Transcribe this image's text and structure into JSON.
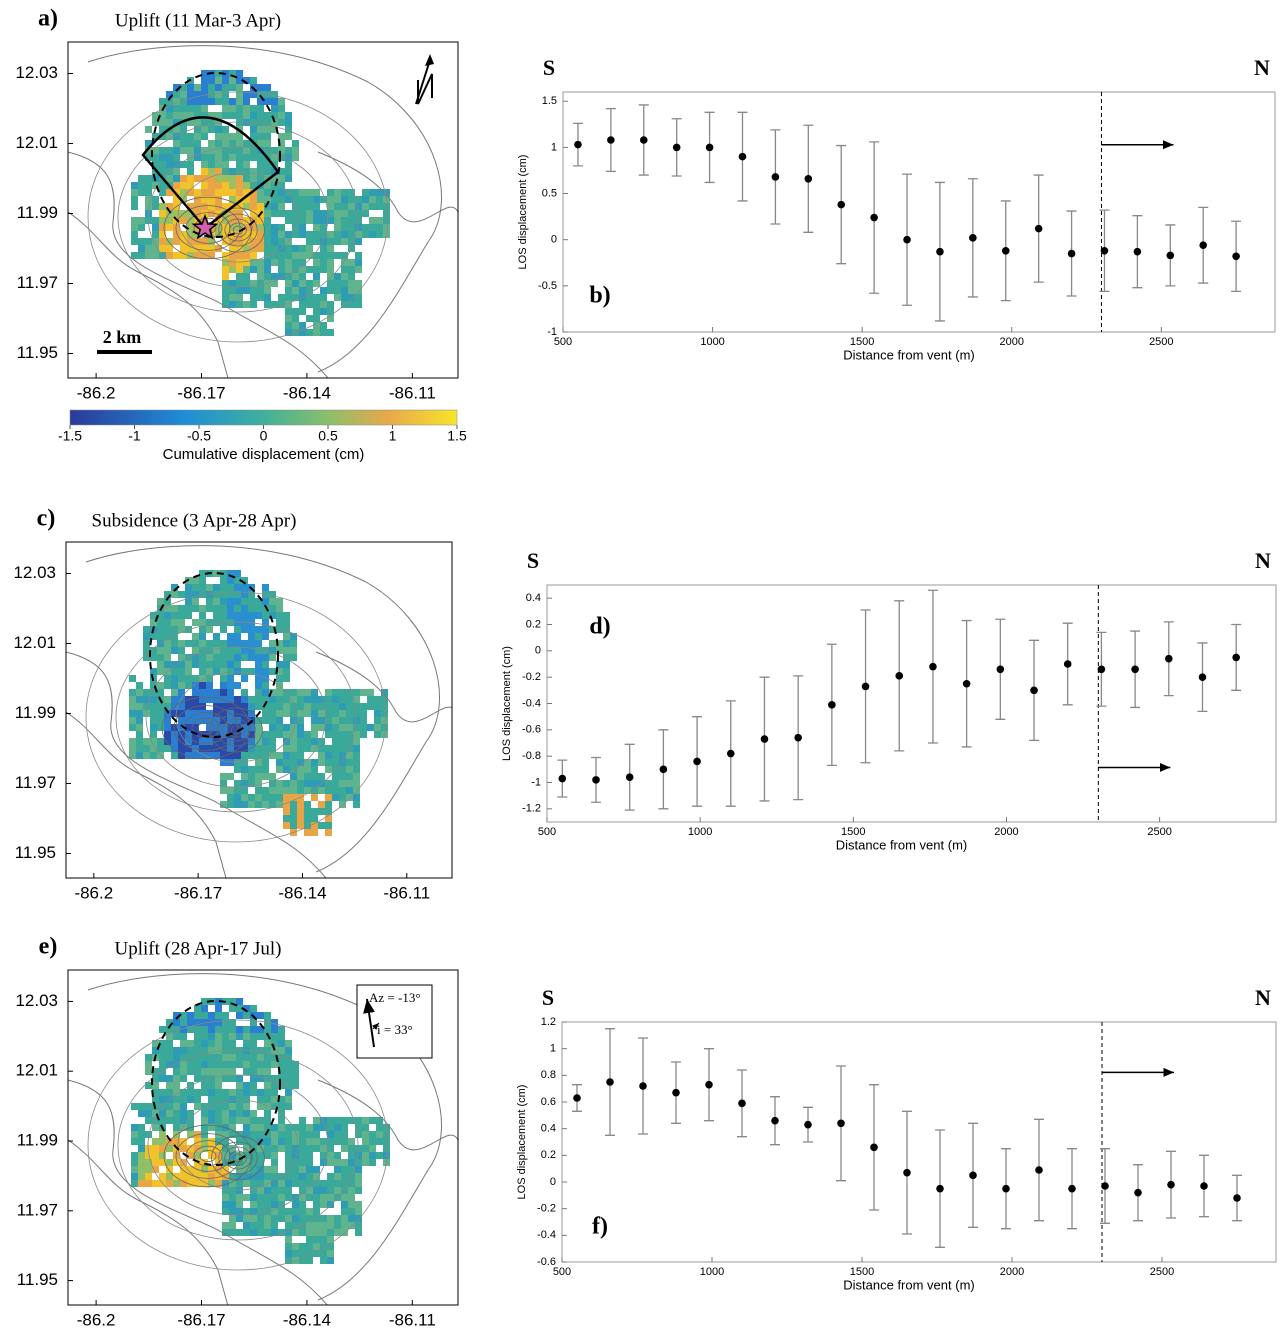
{
  "chart_data": [
    {
      "type": "map",
      "label": "a)",
      "title": "Uplift (11 Mar-3 Apr)",
      "xlim": [
        -86.208,
        -86.097
      ],
      "ylim": [
        11.943,
        12.039
      ],
      "xticks": [
        -86.2,
        -86.17,
        -86.14,
        -86.11
      ],
      "yticks": [
        12.03,
        12.01,
        11.99,
        11.97,
        11.95
      ],
      "scale_label": "2 km",
      "colorbar": {
        "lim": [
          -1.5,
          1.5
        ],
        "ticks": [
          -1.5,
          -1,
          -0.5,
          0,
          0.5,
          1,
          1.5
        ],
        "label": "Cumulative displacement (cm)"
      }
    },
    {
      "type": "errorbar",
      "label": "b)",
      "ends": [
        "S",
        "N"
      ],
      "x_label": "Distance from vent (m)",
      "y_label": "LOS displacement (cm)",
      "xlim": [
        500,
        2880
      ],
      "ylim": [
        -1,
        1.6
      ],
      "xticks": [
        500,
        1000,
        1500,
        2000,
        2500
      ],
      "yticks": [
        -1,
        -0.5,
        0,
        0.5,
        1,
        1.5
      ],
      "vline": 2300,
      "x": [
        550,
        660,
        770,
        880,
        990,
        1100,
        1210,
        1320,
        1430,
        1540,
        1650,
        1760,
        1870,
        1980,
        2090,
        2200,
        2310,
        2420,
        2530,
        2640,
        2750
      ],
      "values": [
        1.03,
        1.08,
        1.08,
        1.0,
        1.0,
        0.9,
        0.68,
        0.66,
        0.38,
        0.24,
        0.0,
        -0.13,
        0.02,
        -0.12,
        0.12,
        -0.15,
        -0.12,
        -0.13,
        -0.17,
        -0.06,
        -0.18
      ],
      "errors": [
        0.23,
        0.34,
        0.38,
        0.31,
        0.38,
        0.48,
        0.51,
        0.58,
        0.64,
        0.82,
        0.71,
        0.75,
        0.64,
        0.54,
        0.58,
        0.46,
        0.44,
        0.39,
        0.33,
        0.41,
        0.38
      ]
    },
    {
      "type": "map",
      "label": "c)",
      "title": "Subsidence (3 Apr-28 Apr)",
      "xlim": [
        -86.208,
        -86.097
      ],
      "ylim": [
        11.943,
        12.039
      ],
      "xticks": [
        -86.2,
        -86.17,
        -86.14,
        -86.11
      ],
      "yticks": [
        12.03,
        12.01,
        11.99,
        11.97,
        11.95
      ]
    },
    {
      "type": "errorbar",
      "label": "d)",
      "ends": [
        "S",
        "N"
      ],
      "x_label": "Distance from vent (m)",
      "y_label": "LOS displacement (cm)",
      "xlim": [
        500,
        2880
      ],
      "ylim": [
        -1.3,
        0.5
      ],
      "xticks": [
        500,
        1000,
        1500,
        2000,
        2500
      ],
      "yticks": [
        -1.2,
        -1,
        -0.8,
        -0.6,
        -0.4,
        -0.2,
        0,
        0.2,
        0.4
      ],
      "vline": 2300,
      "x": [
        550,
        660,
        770,
        880,
        990,
        1100,
        1210,
        1320,
        1430,
        1540,
        1650,
        1760,
        1870,
        1980,
        2090,
        2200,
        2310,
        2420,
        2530,
        2640,
        2750
      ],
      "values": [
        -0.97,
        -0.98,
        -0.96,
        -0.9,
        -0.84,
        -0.78,
        -0.67,
        -0.66,
        -0.41,
        -0.27,
        -0.19,
        -0.12,
        -0.25,
        -0.14,
        -0.3,
        -0.1,
        -0.14,
        -0.14,
        -0.06,
        -0.2,
        -0.05
      ],
      "errors": [
        0.14,
        0.17,
        0.25,
        0.3,
        0.34,
        0.4,
        0.47,
        0.47,
        0.46,
        0.58,
        0.57,
        0.58,
        0.48,
        0.38,
        0.38,
        0.31,
        0.28,
        0.29,
        0.28,
        0.26,
        0.25
      ]
    },
    {
      "type": "map",
      "label": "e)",
      "title": "Uplift (28 Apr-17 Jul)",
      "xlim": [
        -86.208,
        -86.097
      ],
      "ylim": [
        11.943,
        12.039
      ],
      "xticks": [
        -86.2,
        -86.17,
        -86.14,
        -86.11
      ],
      "yticks": [
        12.03,
        12.01,
        11.99,
        11.97,
        11.95
      ],
      "look_labels": [
        "Az = -13°",
        "i = 33°"
      ]
    },
    {
      "type": "errorbar",
      "label": "f)",
      "ends": [
        "S",
        "N"
      ],
      "x_label": "Distance from vent (m)",
      "y_label": "LOS displacement (cm)",
      "xlim": [
        500,
        2880
      ],
      "ylim": [
        -0.6,
        1.2
      ],
      "xticks": [
        500,
        1000,
        1500,
        2000,
        2500
      ],
      "yticks": [
        -0.6,
        -0.4,
        -0.2,
        0,
        0.2,
        0.4,
        0.6,
        0.8,
        1,
        1.2
      ],
      "vline": 2300,
      "x": [
        550,
        660,
        770,
        880,
        990,
        1100,
        1210,
        1320,
        1430,
        1540,
        1650,
        1760,
        1870,
        1980,
        2090,
        2200,
        2310,
        2420,
        2530,
        2640,
        2750
      ],
      "values": [
        0.63,
        0.75,
        0.72,
        0.67,
        0.73,
        0.59,
        0.46,
        0.43,
        0.44,
        0.26,
        0.07,
        -0.05,
        0.05,
        -0.05,
        0.09,
        -0.05,
        -0.03,
        -0.08,
        -0.02,
        -0.03,
        -0.12
      ],
      "errors": [
        0.1,
        0.4,
        0.36,
        0.23,
        0.27,
        0.25,
        0.18,
        0.13,
        0.43,
        0.47,
        0.46,
        0.44,
        0.39,
        0.3,
        0.38,
        0.3,
        0.28,
        0.21,
        0.25,
        0.23,
        0.17
      ]
    }
  ]
}
